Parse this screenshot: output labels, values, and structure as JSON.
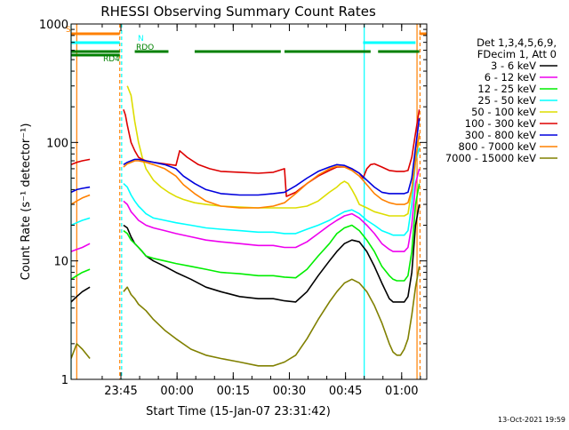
{
  "chart_data": {
    "type": "line",
    "title": "RHESSI Observing Summary Count Rates",
    "xlabel": "Start Time (15-Jan-07 23:31:42)",
    "ylabel": "Count Rate (s⁻¹ detector⁻¹)",
    "ylog": true,
    "ylim": [
      1,
      1000
    ],
    "xlim_minutes_after_start": [
      0,
      95
    ],
    "x_ticks": [
      {
        "label": "23:45",
        "minute": 13.3
      },
      {
        "label": "00:00",
        "minute": 28.3
      },
      {
        "label": "00:15",
        "minute": 43.3
      },
      {
        "label": "00:30",
        "minute": 58.3
      },
      {
        "label": "00:45",
        "minute": 73.3
      },
      {
        "label": "01:00",
        "minute": 88.3
      }
    ],
    "y_ticks": [
      {
        "label": "1",
        "value": 1
      },
      {
        "label": "10",
        "value": 10
      },
      {
        "label": "100",
        "value": 100
      },
      {
        "label": "1000",
        "value": 1000
      }
    ],
    "legend_header": [
      "Det 1,3,4,5,6,9,",
      "FDecim 1, Att 0"
    ],
    "legend_placement": "right",
    "series": [
      {
        "name": "3 - 6 keV",
        "color": "#000000",
        "segments": [
          {
            "x": [
              0,
              1.5,
              3,
              5
            ],
            "y": [
              4.5,
              5,
              5.5,
              6
            ]
          },
          {
            "x": [
              14,
              15,
              16,
              17,
              18,
              19,
              20,
              22,
              25,
              28,
              32,
              36,
              40,
              45,
              50,
              54,
              57,
              60,
              63,
              66,
              69,
              71,
              73,
              75,
              77,
              79,
              81,
              83,
              85,
              86,
              87,
              88,
              89,
              90,
              91,
              92,
              93
            ],
            "y": [
              20,
              19,
              16,
              14,
              13,
              12,
              11,
              10,
              9,
              8,
              7,
              6,
              5.5,
              5,
              4.8,
              4.8,
              4.6,
              4.5,
              5.5,
              7.5,
              10,
              12,
              14,
              15,
              14.5,
              12,
              9,
              6.5,
              4.8,
              4.5,
              4.5,
              4.5,
              4.5,
              5,
              8,
              20,
              30
            ]
          }
        ]
      },
      {
        "name": "6 - 12 keV",
        "color": "#ee00ee",
        "segments": [
          {
            "x": [
              0,
              1.5,
              3,
              5
            ],
            "y": [
              12,
              12.5,
              13,
              14
            ]
          },
          {
            "x": [
              14,
              15,
              16,
              17,
              18,
              19,
              20,
              22,
              25,
              28,
              32,
              36,
              40,
              45,
              50,
              54,
              57,
              60,
              63,
              66,
              69,
              71,
              73,
              75,
              77,
              79,
              81,
              83,
              85,
              86,
              87,
              88,
              89,
              90,
              91,
              92,
              93
            ],
            "y": [
              32,
              30,
              26,
              24,
              22,
              21,
              20,
              19,
              18,
              17,
              16,
              15,
              14.5,
              14,
              13.5,
              13.5,
              13,
              13,
              14.5,
              17,
              20,
              22,
              24,
              25,
              23,
              20,
              17,
              14,
              12.5,
              12,
              12,
              12,
              12,
              13,
              20,
              45,
              60
            ]
          }
        ]
      },
      {
        "name": "12 - 25 keV",
        "color": "#00ee00",
        "segments": [
          {
            "x": [
              0,
              1.5,
              3,
              5
            ],
            "y": [
              7,
              7.5,
              8,
              8.5
            ]
          },
          {
            "x": [
              14,
              15,
              16,
              17,
              18,
              19,
              20,
              22,
              25,
              28,
              32,
              36,
              40,
              45,
              50,
              54,
              57,
              60,
              63,
              66,
              69,
              71,
              73,
              75,
              77,
              79,
              81,
              83,
              85,
              86,
              87,
              88,
              89,
              90,
              91,
              92,
              93
            ],
            "y": [
              18,
              17,
              15,
              14,
              13,
              12,
              11,
              10.5,
              10,
              9.5,
              9,
              8.5,
              8,
              7.8,
              7.5,
              7.5,
              7.3,
              7.2,
              8.5,
              11,
              14,
              17,
              19,
              20,
              18,
              15,
              12,
              9,
              7.5,
              7,
              6.8,
              6.8,
              6.8,
              7.5,
              12,
              30,
              45
            ]
          }
        ]
      },
      {
        "name": "25 - 50 keV",
        "color": "#00ffff",
        "segments": [
          {
            "x": [
              0,
              1.5,
              3,
              5
            ],
            "y": [
              20,
              21,
              22,
              23
            ]
          },
          {
            "x": [
              14,
              15,
              16,
              17,
              18,
              19,
              20,
              22,
              25,
              28,
              32,
              36,
              40,
              45,
              50,
              54,
              57,
              60,
              63,
              66,
              69,
              71,
              73,
              75,
              77,
              79,
              81,
              83,
              85,
              86,
              87,
              88,
              89,
              90,
              91,
              92,
              93
            ],
            "y": [
              45,
              42,
              36,
              32,
              29,
              27,
              25,
              23,
              22,
              21,
              20,
              19,
              18.5,
              18,
              17.5,
              17.5,
              17,
              17,
              18.5,
              20,
              22,
              24,
              26,
              27,
              25,
              22,
              20,
              18,
              17,
              16.5,
              16.5,
              16.5,
              16.5,
              18,
              30,
              70,
              90
            ]
          }
        ]
      },
      {
        "name": "50 - 100 keV",
        "color": "#dddd00",
        "segments": [
          {
            "x": [
              15,
              16,
              17,
              18,
              19,
              20,
              22,
              24,
              26,
              28,
              30,
              33,
              36,
              40,
              45,
              50,
              54,
              57,
              60,
              63,
              66,
              69,
              71,
              72,
              73,
              74,
              75,
              76,
              77,
              79,
              81,
              83,
              85,
              87,
              89,
              90,
              91,
              92,
              93
            ],
            "y": [
              300,
              250,
              150,
              100,
              75,
              60,
              48,
              42,
              38,
              35,
              33,
              31,
              30,
              29,
              28.5,
              28,
              28,
              28,
              28,
              29,
              32,
              38,
              42,
              45,
              47,
              45,
              40,
              35,
              30,
              28,
              26,
              25,
              24,
              24,
              24,
              25,
              40,
              80,
              100
            ]
          }
        ]
      },
      {
        "name": "100 - 300 keV",
        "color": "#dd0000",
        "segments": [
          {
            "x": [
              0,
              1.5,
              3,
              5
            ],
            "y": [
              65,
              68,
              70,
              72
            ]
          },
          {
            "x": [
              14,
              14.5,
              15,
              16,
              17,
              18,
              19,
              20,
              22,
              25,
              28,
              29,
              31,
              34,
              37,
              40,
              45,
              50,
              54,
              57,
              57.5,
              60,
              63,
              66,
              69,
              71,
              73,
              75,
              77,
              78,
              79,
              80,
              81,
              83,
              85,
              87,
              89,
              90,
              91,
              92,
              93
            ],
            "y": [
              190,
              170,
              140,
              100,
              85,
              75,
              72,
              70,
              68,
              66,
              64,
              85,
              75,
              65,
              60,
              57,
              56,
              55,
              56,
              60,
              35,
              38,
              45,
              52,
              58,
              62,
              62,
              60,
              55,
              50,
              60,
              65,
              66,
              62,
              58,
              57,
              57,
              58,
              75,
              120,
              190
            ]
          }
        ]
      },
      {
        "name": "300 - 800 keV",
        "color": "#0000dd",
        "segments": [
          {
            "x": [
              0,
              1.5,
              3,
              5
            ],
            "y": [
              38,
              40,
              41,
              42
            ]
          },
          {
            "x": [
              14,
              15,
              16,
              17,
              18,
              19,
              20,
              22,
              25,
              28,
              30,
              33,
              36,
              40,
              45,
              50,
              54,
              57,
              60,
              63,
              66,
              69,
              71,
              73,
              75,
              77,
              79,
              81,
              83,
              85,
              87,
              89,
              90,
              91,
              92,
              93
            ],
            "y": [
              65,
              68,
              70,
              72,
              72,
              71,
              70,
              68,
              65,
              60,
              52,
              45,
              40,
              37,
              36,
              36,
              37,
              38,
              43,
              50,
              57,
              62,
              65,
              64,
              60,
              55,
              48,
              42,
              38,
              37,
              37,
              37,
              38,
              50,
              90,
              160
            ]
          }
        ]
      },
      {
        "name": "800 - 7000 keV",
        "color": "#ff8000",
        "segments": [
          {
            "x": [
              0,
              1.5,
              3,
              5
            ],
            "y": [
              30,
              32,
              34,
              36
            ]
          },
          {
            "x": [
              14,
              15,
              16,
              17,
              18,
              19,
              20,
              22,
              25,
              28,
              30,
              33,
              36,
              40,
              45,
              50,
              54,
              57,
              60,
              63,
              66,
              69,
              71,
              73,
              75,
              77,
              79,
              81,
              83,
              85,
              87,
              89,
              90,
              91,
              92,
              93
            ],
            "y": [
              62,
              66,
              68,
              70,
              70,
              69,
              68,
              65,
              60,
              52,
              44,
              37,
              32,
              29,
              28,
              28,
              29,
              31,
              37,
              45,
              53,
              60,
              63,
              62,
              58,
              52,
              44,
              37,
              33,
              31,
              30,
              30,
              31,
              40,
              70,
              120
            ]
          }
        ]
      },
      {
        "name": "7000 - 15000 keV",
        "color": "#808000",
        "segments": [
          {
            "x": [
              0,
              1.5,
              3,
              5
            ],
            "y": [
              1.5,
              2,
              1.8,
              1.5
            ]
          },
          {
            "x": [
              14,
              15,
              16,
              17,
              18,
              20,
              22,
              25,
              28,
              32,
              36,
              40,
              45,
              50,
              54,
              57,
              60,
              63,
              66,
              69,
              71,
              73,
              75,
              77,
              79,
              81,
              83,
              85,
              86,
              87,
              88,
              89,
              90,
              91,
              92,
              93
            ],
            "y": [
              5.5,
              6,
              5.2,
              4.8,
              4.3,
              3.8,
              3.2,
              2.6,
              2.2,
              1.8,
              1.6,
              1.5,
              1.4,
              1.3,
              1.3,
              1.4,
              1.6,
              2.2,
              3.2,
              4.5,
              5.5,
              6.5,
              7,
              6.5,
              5.5,
              4.2,
              3,
              2,
              1.7,
              1.6,
              1.6,
              1.8,
              2.2,
              3.5,
              6,
              9
            ]
          }
        ]
      }
    ],
    "status_bars": [
      {
        "label": "S",
        "color": "#ff8000",
        "intervals": [
          [
            0,
            13
          ]
        ]
      },
      {
        "label": "S",
        "color": "#ff8000",
        "intervals": [
          [
            93,
            95
          ]
        ]
      },
      {
        "label": "N",
        "color": "#00ffff",
        "intervals": [
          [
            0,
            13
          ],
          [
            78,
            92
          ]
        ]
      },
      {
        "label": "RDO",
        "color": "#008000",
        "intervals": [
          [
            0,
            13
          ],
          [
            17,
            26
          ],
          [
            33,
            56
          ],
          [
            57,
            80
          ],
          [
            82,
            93
          ]
        ]
      },
      {
        "label": "RD4",
        "color": "#008000",
        "intervals": [
          [
            0,
            13
          ]
        ]
      }
    ],
    "vertical_markers": [
      {
        "minute": 0.0,
        "color": "#00ffff",
        "style": "solid"
      },
      {
        "minute": 1.5,
        "color": "#ff8000",
        "style": "solid"
      },
      {
        "minute": 13.0,
        "color": "#ff8000",
        "style": "dashed"
      },
      {
        "minute": 13.5,
        "color": "#00ffff",
        "style": "dashed"
      },
      {
        "minute": 78.3,
        "color": "#00ffff",
        "style": "solid"
      },
      {
        "minute": 92.4,
        "color": "#ff8000",
        "style": "solid"
      },
      {
        "minute": 93.2,
        "color": "#ff8000",
        "style": "dashed"
      }
    ],
    "date_stamp": "13-Oct-2021 19:59"
  }
}
